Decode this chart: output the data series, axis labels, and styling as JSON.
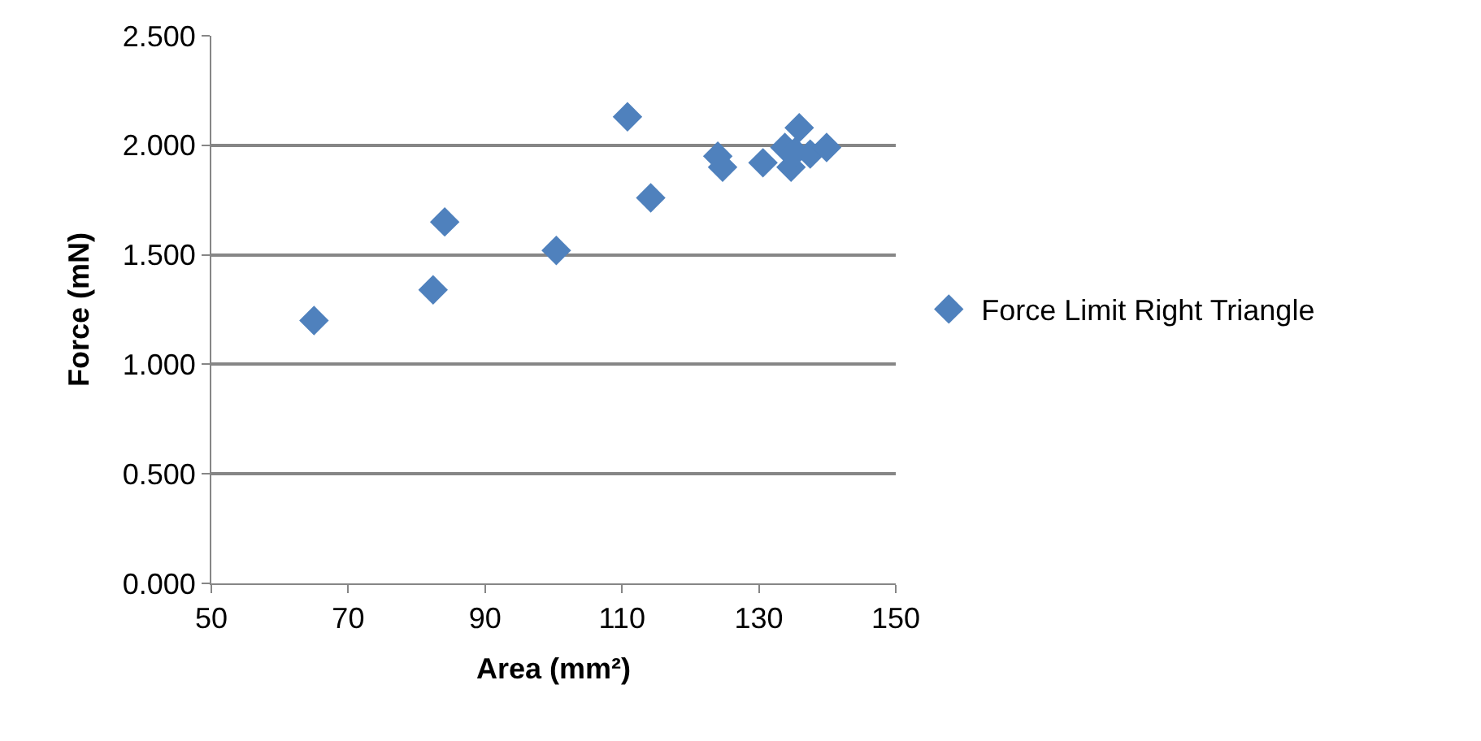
{
  "chart_data": {
    "type": "scatter",
    "xlabel": "Area (mm²)",
    "ylabel": "Force (mN)",
    "series": [
      {
        "name": "Force Limit Right Triangle",
        "color": "#4f81bd",
        "x": [
          65.0,
          82.4,
          84.1,
          100.4,
          110.8,
          114.2,
          124.0,
          124.7,
          130.6,
          133.8,
          134.7,
          135.3,
          135.9,
          137.5,
          139.9
        ],
        "values": [
          1.2,
          1.34,
          1.65,
          1.52,
          2.13,
          1.76,
          1.95,
          1.9,
          1.92,
          1.99,
          1.9,
          1.97,
          2.08,
          1.96,
          1.99
        ]
      }
    ],
    "xlim": [
      50,
      150
    ],
    "xticks": [
      50,
      70,
      90,
      110,
      130,
      150
    ],
    "ylim": [
      0,
      2.5
    ],
    "yticks": [
      {
        "value": 0,
        "label": "0.000"
      },
      {
        "value": 0.5,
        "label": "0.500"
      },
      {
        "value": 1.0,
        "label": "1.000"
      },
      {
        "value": 1.5,
        "label": "1.500"
      },
      {
        "value": 2.0,
        "label": "2.000"
      },
      {
        "value": 2.5,
        "label": "2.500"
      }
    ],
    "grid": "y",
    "legend": "right",
    "marker": "diamond"
  }
}
